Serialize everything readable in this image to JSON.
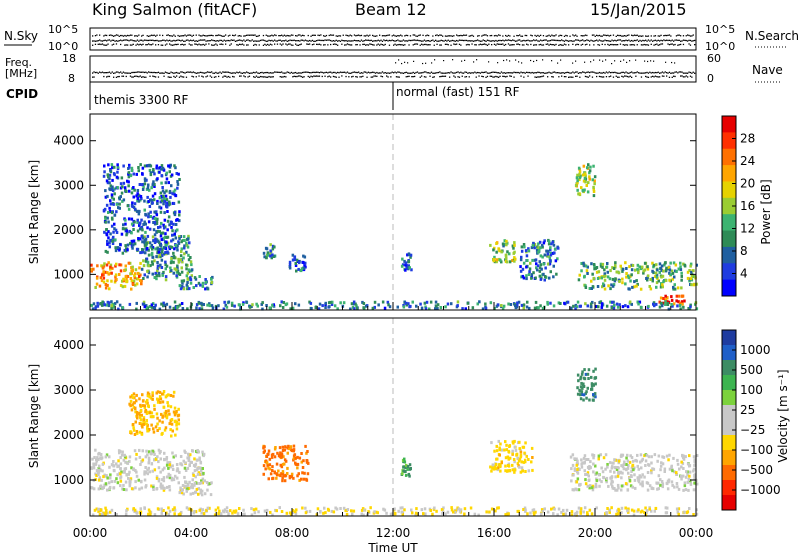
{
  "header": {
    "station": "King Salmon (fitACF)",
    "beam": "Beam 12",
    "date": "15/Jan/2015"
  },
  "params_panel": {
    "left_labels": {
      "nsky": "N.Sky",
      "freq": "Freq.",
      "freq_unit": "[MHz]",
      "cpid": "CPID"
    },
    "right_labels": {
      "nsearch": "N.Search",
      "nave": "Nave"
    },
    "nsky_ticks": [
      "10^5",
      "10^0"
    ],
    "nsearch_ticks": [
      "10^5",
      "10^0"
    ],
    "freq_ticks": [
      "18",
      "8"
    ],
    "nave_ticks": [
      "60",
      "0"
    ],
    "cpid_segments": [
      {
        "label": "themis 3300 RF",
        "start_hour": 0
      },
      {
        "label": "normal (fast) 151 RF",
        "start_hour": 12
      }
    ]
  },
  "colorbars": {
    "power": {
      "label": "Power [dB]",
      "ticks": [
        "28",
        "24",
        "20",
        "16",
        "12",
        "8",
        "4"
      ],
      "colors": [
        "#e60000",
        "#ff3000",
        "#ff7000",
        "#ffa500",
        "#e6d200",
        "#9acd32",
        "#3cb371",
        "#2e8b57",
        "#1f5fa0",
        "#1f3ce0",
        "#0000ff"
      ]
    },
    "velocity": {
      "label": "Velocity [m s⁻¹]",
      "ticks": [
        "1000",
        "500",
        "100",
        "25",
        "−25",
        "−100",
        "−500",
        "−1000"
      ],
      "colors": [
        "#1f3ca0",
        "#1f5fc8",
        "#3c8c64",
        "#3cb450",
        "#7cd23c",
        "#c8c8c8",
        "#c8c8c8",
        "#ffd700",
        "#ffa500",
        "#ff6a00",
        "#ff2800",
        "#e60000"
      ]
    }
  },
  "chart_data": [
    {
      "type": "heatmap",
      "panel": "power",
      "ylabel": "Slant Range [km]",
      "xlabel": "Time UT",
      "x_range_hours": [
        0,
        24
      ],
      "ylim": [
        200,
        4600
      ],
      "y_ticks": [
        1000,
        2000,
        3000,
        4000
      ],
      "x_tick_labels": [
        "00:00",
        "04:00",
        "08:00",
        "12:00",
        "16:00",
        "20:00",
        "00:00"
      ],
      "colorbar_range_db": [
        0,
        30
      ],
      "scatter_regions": [
        {
          "t0": 0.0,
          "t1": 2.0,
          "r0": 700,
          "r1": 1300,
          "value_db": 20
        },
        {
          "t0": 2.0,
          "t1": 4.0,
          "r0": 900,
          "r1": 1900,
          "value_db": 10
        },
        {
          "t0": 0.5,
          "t1": 3.5,
          "r0": 1500,
          "r1": 3500,
          "value_db": 6
        },
        {
          "t0": 3.5,
          "t1": 4.8,
          "r0": 700,
          "r1": 1000,
          "value_db": 8
        },
        {
          "t0": 6.8,
          "t1": 7.3,
          "r0": 1400,
          "r1": 1700,
          "value_db": 10
        },
        {
          "t0": 7.8,
          "t1": 8.5,
          "r0": 1100,
          "r1": 1500,
          "value_db": 6
        },
        {
          "t0": 12.3,
          "t1": 12.7,
          "r0": 1100,
          "r1": 1500,
          "value_db": 6
        },
        {
          "t0": 15.8,
          "t1": 16.8,
          "r0": 1300,
          "r1": 1800,
          "value_db": 14
        },
        {
          "t0": 17.0,
          "t1": 18.5,
          "r0": 900,
          "r1": 1800,
          "value_db": 8
        },
        {
          "t0": 19.2,
          "t1": 20.0,
          "r0": 2800,
          "r1": 3500,
          "value_db": 14
        },
        {
          "t0": 19.3,
          "t1": 24.0,
          "r0": 700,
          "r1": 1300,
          "value_db": 12
        },
        {
          "t0": 22.5,
          "t1": 23.5,
          "r0": 350,
          "r1": 550,
          "value_db": 26
        },
        {
          "t0": 0.0,
          "t1": 24.0,
          "r0": 250,
          "r1": 420,
          "value_db": 8
        }
      ]
    },
    {
      "type": "heatmap",
      "panel": "velocity",
      "ylabel": "Slant Range [km]",
      "xlabel": "Time UT",
      "x_range_hours": [
        0,
        24
      ],
      "ylim": [
        200,
        4600
      ],
      "y_ticks": [
        1000,
        2000,
        3000,
        4000
      ],
      "x_tick_labels": [
        "00:00",
        "04:00",
        "08:00",
        "12:00",
        "16:00",
        "20:00",
        "00:00"
      ],
      "colorbar_range_ms": [
        -1000,
        1000
      ],
      "scatter_regions": [
        {
          "t0": 0.0,
          "t1": 4.5,
          "r0": 800,
          "r1": 1700,
          "value_ms": 0
        },
        {
          "t0": 1.5,
          "t1": 3.5,
          "r0": 2000,
          "r1": 3000,
          "value_ms": -100
        },
        {
          "t0": 3.5,
          "t1": 4.8,
          "r0": 700,
          "r1": 1000,
          "value_ms": 0
        },
        {
          "t0": 6.8,
          "t1": 8.6,
          "r0": 1000,
          "r1": 1800,
          "value_ms": -400
        },
        {
          "t0": 12.3,
          "t1": 12.7,
          "r0": 1100,
          "r1": 1500,
          "value_ms": 100
        },
        {
          "t0": 15.8,
          "t1": 17.5,
          "r0": 1200,
          "r1": 1900,
          "value_ms": -60
        },
        {
          "t0": 19.2,
          "t1": 20.0,
          "r0": 2800,
          "r1": 3500,
          "value_ms": 200
        },
        {
          "t0": 19.0,
          "t1": 24.0,
          "r0": 800,
          "r1": 1600,
          "value_ms": 0
        },
        {
          "t0": 0.0,
          "t1": 24.0,
          "r0": 250,
          "r1": 420,
          "value_ms": -30
        }
      ]
    }
  ]
}
